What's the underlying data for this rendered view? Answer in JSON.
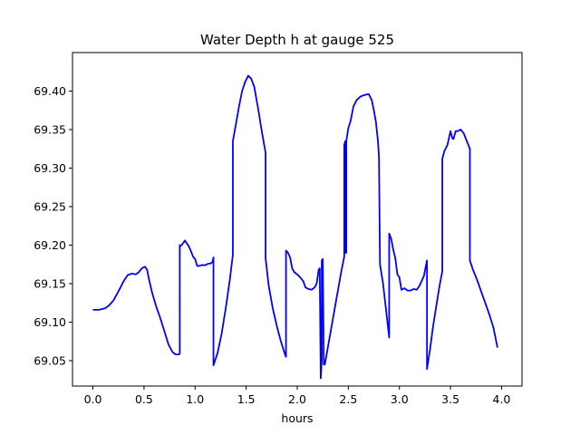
{
  "chart_data": {
    "type": "line",
    "title": "Water Depth h at gauge 525",
    "xlabel": "hours",
    "ylabel": "",
    "xlim": [
      -0.2,
      4.2
    ],
    "ylim": [
      69.017,
      69.45
    ],
    "xticks": [
      0.0,
      0.5,
      1.0,
      1.5,
      2.0,
      2.5,
      3.0,
      3.5,
      4.0
    ],
    "xtick_labels": [
      "0.0",
      "0.5",
      "1.0",
      "1.5",
      "2.0",
      "2.5",
      "3.0",
      "3.5",
      "4.0"
    ],
    "yticks": [
      69.05,
      69.1,
      69.15,
      69.2,
      69.25,
      69.3,
      69.35,
      69.4
    ],
    "ytick_labels": [
      "69.05",
      "69.10",
      "69.15",
      "69.20",
      "69.25",
      "69.30",
      "69.35",
      "69.40"
    ],
    "grid": false,
    "series": [
      {
        "color": "#0000ff",
        "points": [
          [
            0.0,
            69.116
          ],
          [
            0.06,
            69.116
          ],
          [
            0.12,
            69.118
          ],
          [
            0.16,
            69.122
          ],
          [
            0.2,
            69.128
          ],
          [
            0.25,
            69.14
          ],
          [
            0.3,
            69.153
          ],
          [
            0.34,
            69.161
          ],
          [
            0.38,
            69.163
          ],
          [
            0.42,
            69.162
          ],
          [
            0.45,
            69.165
          ],
          [
            0.48,
            69.17
          ],
          [
            0.51,
            69.172
          ],
          [
            0.53,
            69.168
          ],
          [
            0.55,
            69.155
          ],
          [
            0.58,
            69.138
          ],
          [
            0.62,
            69.12
          ],
          [
            0.66,
            69.105
          ],
          [
            0.7,
            69.088
          ],
          [
            0.74,
            69.071
          ],
          [
            0.78,
            69.061
          ],
          [
            0.81,
            69.058
          ],
          [
            0.84,
            69.058
          ],
          [
            0.85,
            69.059
          ],
          [
            0.85,
            69.2
          ],
          [
            0.86,
            69.199
          ],
          [
            0.88,
            69.202
          ],
          [
            0.9,
            69.206
          ],
          [
            0.92,
            69.202
          ],
          [
            0.94,
            69.198
          ],
          [
            0.96,
            69.192
          ],
          [
            0.98,
            69.185
          ],
          [
            1.0,
            69.182
          ],
          [
            1.02,
            69.173
          ],
          [
            1.04,
            69.173
          ],
          [
            1.06,
            69.174
          ],
          [
            1.1,
            69.174
          ],
          [
            1.13,
            69.176
          ],
          [
            1.15,
            69.176
          ],
          [
            1.17,
            69.178
          ],
          [
            1.18,
            69.184
          ],
          [
            1.18,
            69.044
          ],
          [
            1.22,
            69.06
          ],
          [
            1.26,
            69.085
          ],
          [
            1.3,
            69.118
          ],
          [
            1.34,
            69.155
          ],
          [
            1.37,
            69.188
          ],
          [
            1.37,
            69.335
          ],
          [
            1.39,
            69.35
          ],
          [
            1.41,
            69.365
          ],
          [
            1.43,
            69.38
          ],
          [
            1.46,
            69.4
          ],
          [
            1.49,
            69.412
          ],
          [
            1.52,
            69.42
          ],
          [
            1.55,
            69.416
          ],
          [
            1.58,
            69.405
          ],
          [
            1.6,
            69.39
          ],
          [
            1.62,
            69.375
          ],
          [
            1.65,
            69.35
          ],
          [
            1.69,
            69.32
          ],
          [
            1.69,
            69.183
          ],
          [
            1.72,
            69.148
          ],
          [
            1.76,
            69.118
          ],
          [
            1.8,
            69.095
          ],
          [
            1.84,
            69.075
          ],
          [
            1.88,
            69.058
          ],
          [
            1.89,
            69.055
          ],
          [
            1.89,
            69.193
          ],
          [
            1.91,
            69.19
          ],
          [
            1.93,
            69.184
          ],
          [
            1.95,
            69.17
          ],
          [
            1.97,
            69.165
          ],
          [
            2.0,
            69.162
          ],
          [
            2.03,
            69.158
          ],
          [
            2.06,
            69.153
          ],
          [
            2.08,
            69.145
          ],
          [
            2.11,
            69.143
          ],
          [
            2.14,
            69.142
          ],
          [
            2.17,
            69.145
          ],
          [
            2.19,
            69.15
          ],
          [
            2.21,
            69.168
          ],
          [
            2.22,
            69.17
          ],
          [
            2.23,
            69.027
          ],
          [
            2.24,
            69.05
          ],
          [
            2.24,
            69.18
          ],
          [
            2.25,
            69.182
          ],
          [
            2.26,
            69.045
          ],
          [
            2.27,
            69.045
          ],
          [
            2.31,
            69.075
          ],
          [
            2.35,
            69.105
          ],
          [
            2.39,
            69.135
          ],
          [
            2.43,
            69.165
          ],
          [
            2.46,
            69.185
          ],
          [
            2.46,
            69.33
          ],
          [
            2.47,
            69.335
          ],
          [
            2.47,
            69.19
          ],
          [
            2.48,
            69.19
          ],
          [
            2.48,
            69.335
          ],
          [
            2.5,
            69.352
          ],
          [
            2.52,
            69.36
          ],
          [
            2.55,
            69.38
          ],
          [
            2.58,
            69.388
          ],
          [
            2.62,
            69.393
          ],
          [
            2.66,
            69.395
          ],
          [
            2.7,
            69.396
          ],
          [
            2.73,
            69.388
          ],
          [
            2.75,
            69.375
          ],
          [
            2.77,
            69.36
          ],
          [
            2.79,
            69.335
          ],
          [
            2.8,
            69.315
          ],
          [
            2.81,
            69.175
          ],
          [
            2.84,
            69.15
          ],
          [
            2.87,
            69.115
          ],
          [
            2.9,
            69.08
          ],
          [
            2.9,
            69.215
          ],
          [
            2.92,
            69.208
          ],
          [
            2.94,
            69.194
          ],
          [
            2.96,
            69.183
          ],
          [
            2.98,
            69.162
          ],
          [
            3.0,
            69.158
          ],
          [
            3.02,
            69.142
          ],
          [
            3.05,
            69.144
          ],
          [
            3.08,
            69.141
          ],
          [
            3.11,
            69.141
          ],
          [
            3.14,
            69.143
          ],
          [
            3.17,
            69.142
          ],
          [
            3.2,
            69.148
          ],
          [
            3.24,
            69.16
          ],
          [
            3.27,
            69.18
          ],
          [
            3.27,
            69.039
          ],
          [
            3.3,
            69.065
          ],
          [
            3.33,
            69.095
          ],
          [
            3.36,
            69.12
          ],
          [
            3.39,
            69.145
          ],
          [
            3.42,
            69.166
          ],
          [
            3.42,
            69.312
          ],
          [
            3.44,
            69.322
          ],
          [
            3.47,
            69.33
          ],
          [
            3.5,
            69.348
          ],
          [
            3.52,
            69.338
          ],
          [
            3.53,
            69.338
          ],
          [
            3.55,
            69.348
          ],
          [
            3.57,
            69.348
          ],
          [
            3.6,
            69.35
          ],
          [
            3.63,
            69.345
          ],
          [
            3.66,
            69.335
          ],
          [
            3.69,
            69.325
          ],
          [
            3.69,
            69.18
          ],
          [
            3.72,
            69.168
          ],
          [
            3.76,
            69.155
          ],
          [
            3.8,
            69.14
          ],
          [
            3.84,
            69.125
          ],
          [
            3.88,
            69.11
          ],
          [
            3.92,
            69.093
          ],
          [
            3.96,
            69.067
          ]
        ]
      }
    ]
  }
}
